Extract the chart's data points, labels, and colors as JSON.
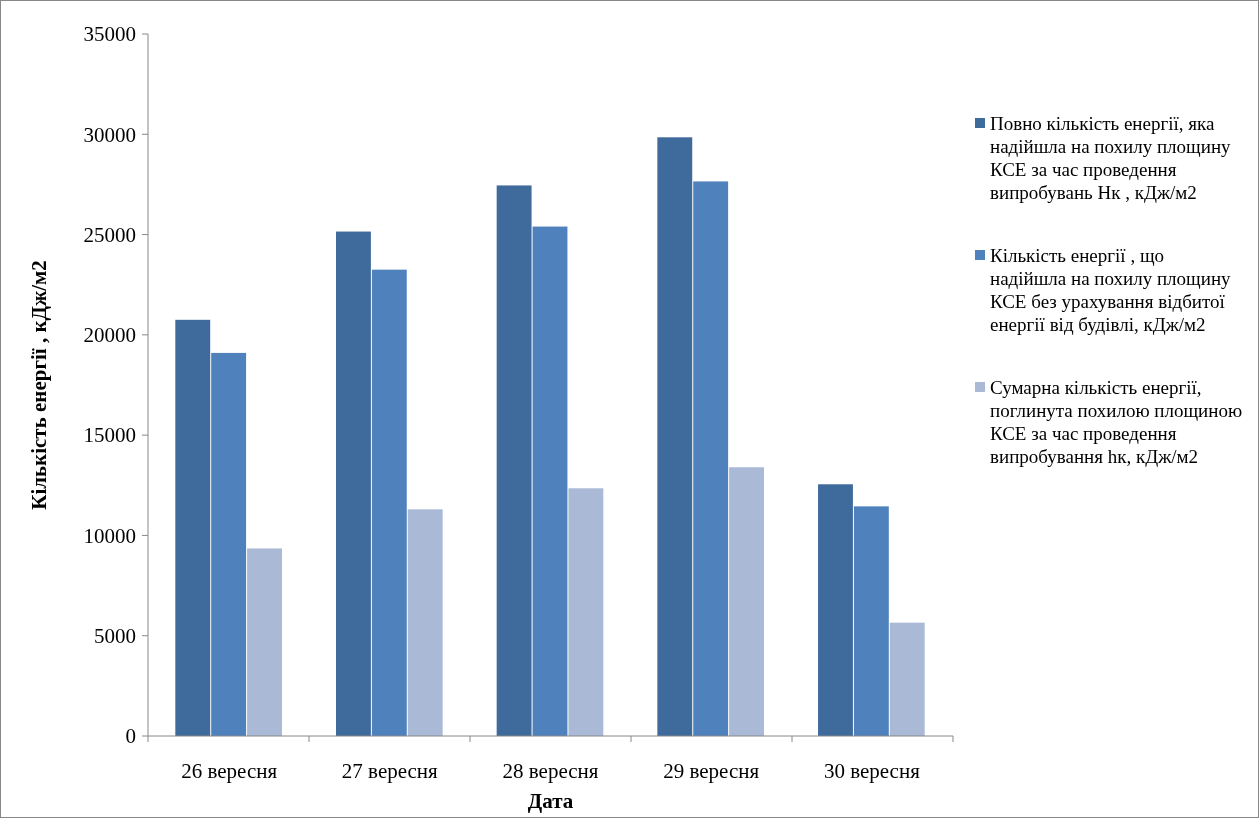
{
  "chart_data": {
    "type": "bar",
    "xlabel": "Дата",
    "ylabel": "Кількість енергії , кДж/м2",
    "categories": [
      "26 вересня",
      "27 вересня",
      "28 вересня",
      "29 вересня",
      "30 вересня"
    ],
    "series": [
      {
        "name": "Повно кількість енергії, яка надійшла на похилу площину КСЕ за час проведення випробувань Нк , кДж/м2",
        "color": "#3f6a9c",
        "values": [
          20750,
          25150,
          27450,
          29850,
          12550
        ]
      },
      {
        "name": "Кількість енергії , що надійшла на похилу площину КСЕ без урахування відбитої енергії від будівлі, кДж/м2",
        "color": "#4f81bd",
        "values": [
          19100,
          23250,
          25400,
          27650,
          11450
        ]
      },
      {
        "name": "Сумарна кількість енергії, поглинута похилою площиною КСЕ за час проведення випробування hк, кДж/м2",
        "color": "#aab9d6",
        "values": [
          9350,
          11300,
          12350,
          13400,
          5650
        ]
      }
    ],
    "ylim": [
      0,
      35000
    ],
    "yticks": [
      0,
      5000,
      10000,
      15000,
      20000,
      25000,
      30000,
      35000
    ],
    "grid": false,
    "legend": "right"
  }
}
